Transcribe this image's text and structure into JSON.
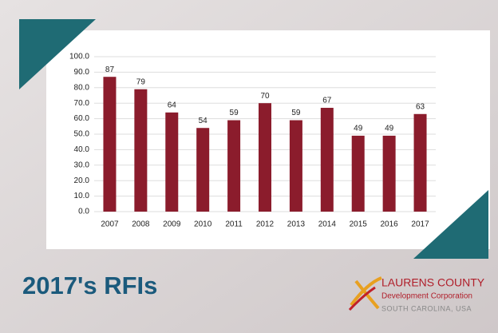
{
  "chart_data": {
    "type": "bar",
    "categories": [
      "2007",
      "2008",
      "2009",
      "2010",
      "2011",
      "2012",
      "2013",
      "2014",
      "2015",
      "2016",
      "2017"
    ],
    "values": [
      87,
      79,
      64,
      54,
      59,
      70,
      59,
      67,
      49,
      49,
      63
    ],
    "color": "#8b1c2c",
    "ylim": [
      0,
      100
    ],
    "yticks": [
      {
        "value": 0,
        "label": "0.0"
      },
      {
        "value": 10,
        "label": "10.0"
      },
      {
        "value": 20,
        "label": "20.0"
      },
      {
        "value": 30,
        "label": "30.0"
      },
      {
        "value": 40,
        "label": "40.0"
      },
      {
        "value": 50,
        "label": "50.0"
      },
      {
        "value": 60,
        "label": "60.0"
      },
      {
        "value": 70,
        "label": "70.0"
      },
      {
        "value": 80,
        "label": "80.0"
      },
      {
        "value": 90,
        "label": "90.0"
      },
      {
        "value": 100,
        "label": "100.0"
      }
    ],
    "grid": true
  },
  "slide": {
    "title": "2017's RFIs",
    "logo": {
      "name": "LAURENS COUNTY",
      "subtitle": "Development Corporation",
      "location": "SOUTH CAROLINA, USA"
    }
  }
}
